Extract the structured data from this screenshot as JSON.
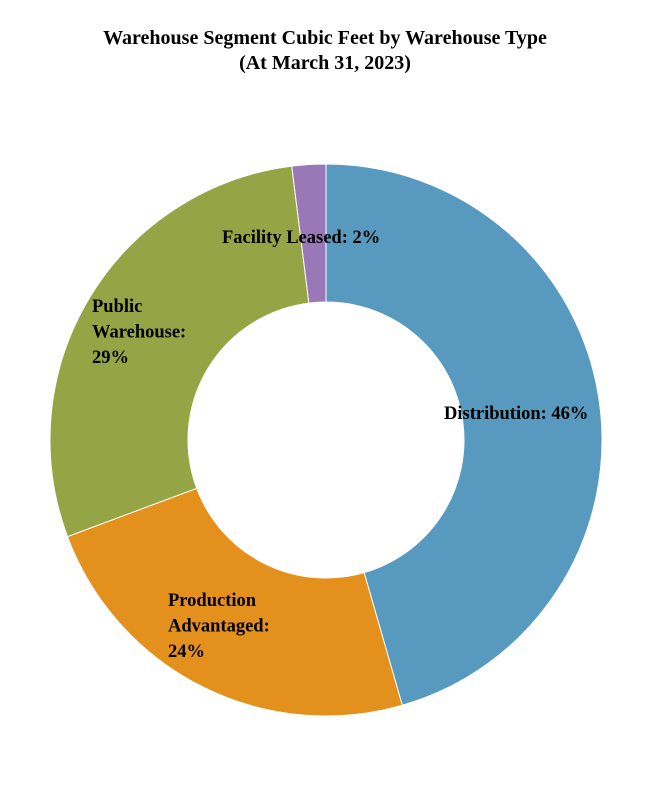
{
  "chart_data": {
    "type": "pie",
    "title": "Warehouse Segment Cubic Feet by Warehouse Type",
    "subtitle": "(At March 31, 2023)",
    "donut": true,
    "slices": [
      {
        "name": "Distribution",
        "value": 46,
        "label_lines": [
          "Distribution: 46%"
        ],
        "color": "#589ABF"
      },
      {
        "name": "Production Advantaged",
        "value": 24,
        "label_lines": [
          "Production",
          "Advantaged:",
          "24%"
        ],
        "color": "#E4901D"
      },
      {
        "name": "Public Warehouse",
        "value": 29,
        "label_lines": [
          "Public",
          "Warehouse:",
          "29%"
        ],
        "color": "#95A546"
      },
      {
        "name": "Facility Leased",
        "value": 2,
        "label_lines": [
          "Facility Leased: 2%"
        ],
        "color": "#9A78B8"
      }
    ],
    "start_angle": "12 o'clock",
    "direction": "clockwise",
    "legend": "none"
  }
}
